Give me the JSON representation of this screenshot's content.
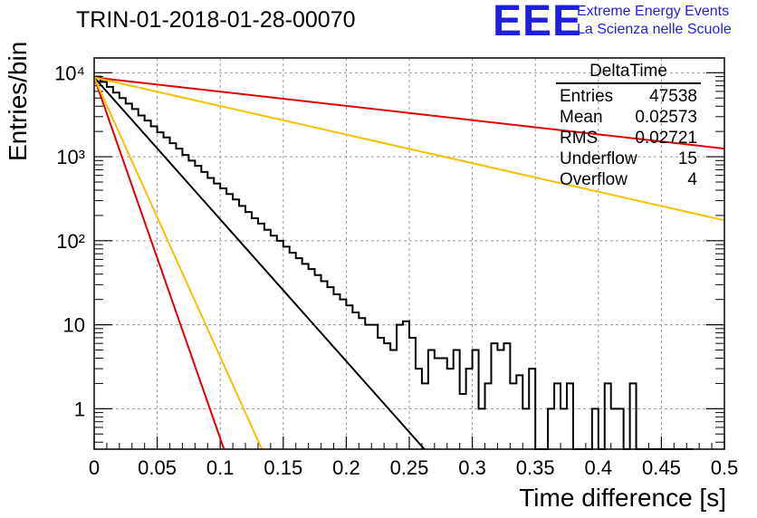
{
  "chart_data": {
    "type": "line",
    "title": "TRIN-01-2018-01-28-00070",
    "xlabel": "Time difference [s]",
    "ylabel": "Entries/bin",
    "xlim": [
      0,
      0.5
    ],
    "ylim": [
      0.33,
      15000
    ],
    "y_scale": "log",
    "grid": true,
    "x_ticks": [
      "0",
      "0.05",
      "0.1",
      "0.15",
      "0.2",
      "0.25",
      "0.3",
      "0.35",
      "0.4",
      "0.45",
      "0.5"
    ],
    "y_ticks": [
      "1",
      "10",
      "10²",
      "10³",
      "10⁴"
    ],
    "histogram": {
      "bin_width": 0.005,
      "values": [
        9000,
        7800,
        6800,
        5800,
        5000,
        4300,
        3700,
        3100,
        2700,
        2300,
        1950,
        1700,
        1450,
        1250,
        1050,
        900,
        780,
        660,
        560,
        480,
        420,
        360,
        310,
        260,
        220,
        185,
        160,
        135,
        115,
        100,
        85,
        72,
        62,
        53,
        46,
        39,
        33,
        28,
        23,
        20,
        17,
        14,
        12,
        10,
        10,
        7,
        6,
        5,
        10,
        11,
        7,
        3,
        2,
        5,
        4,
        4,
        3,
        5,
        1.5,
        3,
        5,
        1,
        2,
        6,
        5,
        6,
        2,
        2.5,
        1,
        3,
        0.5,
        0.5,
        1,
        2,
        1,
        2,
        0.5,
        0.5,
        0.5,
        1,
        0.5,
        2,
        1,
        1,
        0.5,
        2,
        0.5,
        0.5,
        0.5,
        0.5,
        0.5,
        0.5,
        0.5,
        0.5,
        0.5
      ]
    },
    "series": [
      {
        "color": "#000000",
        "x": [
          0,
          0.262
        ],
        "y": [
          8800,
          0.33
        ]
      },
      {
        "color": "#e00000",
        "x": [
          0,
          0.5
        ],
        "y": [
          8800,
          1250
        ]
      },
      {
        "color": "#f4c000",
        "x": [
          0,
          0.5
        ],
        "y": [
          8800,
          175
        ]
      },
      {
        "color": "#e00000",
        "x": [
          0,
          0.103
        ],
        "y": [
          8800,
          0.33
        ]
      },
      {
        "color": "#f4c000",
        "x": [
          0,
          0.133
        ],
        "y": [
          8800,
          0.33
        ]
      }
    ]
  },
  "logo": {
    "mark": "EEE",
    "line1": "Extreme Energy Events",
    "line2": "La Scienza nelle Scuole"
  },
  "stats": {
    "title": "DeltaTime",
    "rows": [
      {
        "label": "Entries",
        "value": "47538"
      },
      {
        "label": "Mean",
        "value": "0.02573"
      },
      {
        "label": "RMS",
        "value": "0.02721"
      },
      {
        "label": "Underflow",
        "value": "15"
      },
      {
        "label": "Overflow",
        "value": "4"
      }
    ]
  }
}
